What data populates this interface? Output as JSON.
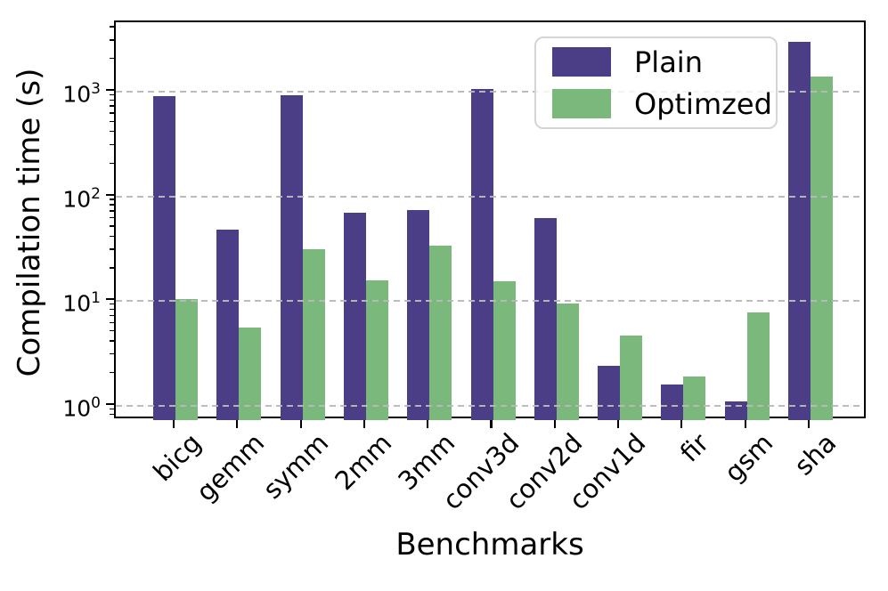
{
  "chart_data": {
    "type": "bar",
    "title": "",
    "xlabel": "Benchmarks",
    "ylabel": "Compilation time (s)",
    "yscale": "log",
    "ylim": [
      0.73,
      4600
    ],
    "yticks_exponents": [
      0,
      1,
      2,
      3
    ],
    "grid": "horizontal dashed at each decade, drawn over bars",
    "legend_position": "upper right inside plot",
    "categories": [
      "bicg",
      "gemm",
      "symm",
      "2mm",
      "3mm",
      "conv3d",
      "conv2d",
      "conv1d",
      "fir",
      "gsm",
      "sha"
    ],
    "series": [
      {
        "name": "Plain",
        "color": "#4B3E87",
        "values": [
          900,
          48,
          920,
          70,
          74,
          1050,
          62,
          2.4,
          1.6,
          1.1,
          3000
        ]
      },
      {
        "name": "Optimzed",
        "color": "#7BB87B",
        "values": [
          10.4,
          5.6,
          31,
          15.7,
          33.5,
          15.5,
          9.4,
          4.7,
          1.9,
          7.8,
          1400
        ]
      }
    ]
  },
  "colors": {
    "plain": "#4B3E87",
    "optimized": "#7BB87B",
    "grid": "#b9b9b9",
    "spine": "#000000",
    "legend_border": "#d5d5d5"
  }
}
